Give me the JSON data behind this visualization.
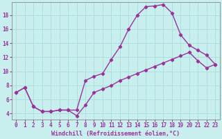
{
  "xlabel": "Windchill (Refroidissement éolien,°C)",
  "bg_color": "#c8eeee",
  "grid_color": "#aadddd",
  "line_color": "#993399",
  "xlim": [
    -0.5,
    23.5
  ],
  "ylim": [
    3.2,
    19.8
  ],
  "xticks": [
    0,
    1,
    2,
    3,
    4,
    5,
    6,
    7,
    8,
    9,
    10,
    11,
    12,
    13,
    14,
    15,
    16,
    17,
    18,
    19,
    20,
    21,
    22,
    23
  ],
  "yticks": [
    4,
    6,
    8,
    10,
    12,
    14,
    16,
    18
  ],
  "line1_x": [
    0,
    1,
    2,
    3,
    4,
    5,
    6,
    7,
    8,
    9,
    10,
    11,
    12,
    13,
    14,
    15,
    16,
    17,
    18,
    19,
    20,
    21,
    22,
    23
  ],
  "line1_y": [
    7.0,
    7.7,
    5.0,
    4.3,
    4.3,
    4.5,
    4.5,
    4.5,
    8.7,
    9.3,
    9.7,
    11.7,
    13.5,
    16.0,
    18.0,
    19.2,
    19.3,
    19.5,
    18.3,
    15.2,
    13.7,
    13.0,
    12.3,
    11.0
  ],
  "line2_x": [
    0,
    1,
    2,
    3,
    4,
    5,
    6,
    7,
    8,
    9,
    10,
    11,
    12,
    13,
    14,
    15,
    16,
    17,
    18,
    19,
    20,
    21,
    22,
    23
  ],
  "line2_y": [
    7.0,
    7.7,
    5.0,
    4.3,
    4.3,
    4.5,
    4.5,
    3.7,
    5.2,
    7.0,
    7.5,
    8.0,
    8.7,
    9.2,
    9.7,
    10.2,
    10.7,
    11.2,
    11.7,
    12.2,
    12.7,
    11.5,
    10.5,
    11.0
  ],
  "xlabel_fontsize": 6,
  "tick_fontsize": 5.5,
  "line_width": 1.0,
  "marker_size": 2.2
}
